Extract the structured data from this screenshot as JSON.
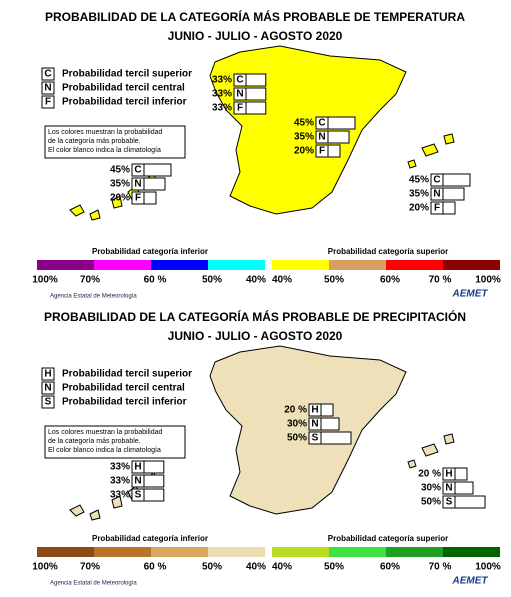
{
  "maps": [
    {
      "title": "PROBABILIDAD DE LA CATEGORÍA MÁS PROBABLE DE TEMPERATURA",
      "subtitle": "JUNIO - JULIO - AGOSTO 2020",
      "legend": [
        {
          "letter": "C",
          "label": "Probabilidad tercil superior"
        },
        {
          "letter": "N",
          "label": "Probabilidad tercil central"
        },
        {
          "letter": "F",
          "label": "Probabilidad tercil inferior"
        }
      ],
      "note": [
        "Los colores muestran la probabilidad",
        "de la categoría más probable.",
        "El color blanco indica la climatología"
      ],
      "regions": [
        {
          "rows": [
            {
              "label": "33%",
              "letter": "C"
            },
            {
              "label": "33%",
              "letter": "N"
            },
            {
              "label": "33%",
              "letter": "F"
            }
          ]
        },
        {
          "rows": [
            {
              "label": "45%",
              "letter": "C"
            },
            {
              "label": "35%",
              "letter": "N"
            },
            {
              "label": "20%",
              "letter": "F"
            }
          ]
        },
        {
          "rows": [
            {
              "label": "45%",
              "letter": "C"
            },
            {
              "label": "35%",
              "letter": "N"
            },
            {
              "label": "20%",
              "letter": "F"
            }
          ]
        },
        {
          "rows": [
            {
              "label": "45%",
              "letter": "C"
            },
            {
              "label": "35%",
              "letter": "N"
            },
            {
              "label": "20%",
              "letter": "F"
            }
          ]
        }
      ],
      "map_color": "#ffff00",
      "scale": {
        "lower_label": "Probabilidad categoría inferior",
        "upper_label": "Probabilidad categoría superior",
        "colors": [
          "#8b008b",
          "#ff00ff",
          "#0000ff",
          "#00ffff",
          "#ffff00",
          "#d8a060",
          "#ff0000",
          "#8b0000"
        ],
        "ticks": [
          "100%",
          "70%",
          "60 %",
          "50%",
          "40%",
          "40%",
          "50%",
          "60%",
          "70 %",
          "100%"
        ]
      },
      "agency": "Agencia Estatal de Meteorología",
      "logo": "AEMET"
    },
    {
      "title": "PROBABILIDAD DE LA CATEGORÍA MÁS PROBABLE DE PRECIPITACIÓN",
      "subtitle": "JUNIO - JULIO - AGOSTO 2020",
      "legend": [
        {
          "letter": "H",
          "label": "Probabilidad tercil superior"
        },
        {
          "letter": "N",
          "label": "Probabilidad tercil central"
        },
        {
          "letter": "S",
          "label": "Probabilidad tercil inferior"
        }
      ],
      "note": [
        "Los colores muestran la probabilidad",
        "de la categoría más probable.",
        "El color blanco indica la climatología"
      ],
      "regions": [
        {
          "rows": [
            {
              "label": "20 %",
              "letter": "H"
            },
            {
              "label": "30%",
              "letter": "N"
            },
            {
              "label": "50%",
              "letter": "S"
            }
          ]
        },
        {
          "rows": [
            {
              "label": "33%",
              "letter": "H"
            },
            {
              "label": "33%",
              "letter": "N"
            },
            {
              "label": "33%",
              "letter": "S"
            }
          ]
        },
        {
          "rows": [
            {
              "label": "20 %",
              "letter": "H"
            },
            {
              "label": "30%",
              "letter": "N"
            },
            {
              "label": "50%",
              "letter": "S"
            }
          ]
        }
      ],
      "map_color": "#eee0b8",
      "scale": {
        "lower_label": "Probabilidad categoría inferior",
        "upper_label": "Probabilidad categoría superior",
        "colors": [
          "#8b4a14",
          "#b87428",
          "#d8a860",
          "#e8dcb0",
          "#b8e020",
          "#40e040",
          "#20a020",
          "#006400"
        ],
        "ticks": [
          "100%",
          "70%",
          "60 %",
          "50%",
          "40%",
          "40%",
          "50%",
          "60%",
          "70 %",
          "100%"
        ]
      },
      "agency": "Agencia Estatal de Meteorología",
      "logo": "AEMET"
    }
  ]
}
